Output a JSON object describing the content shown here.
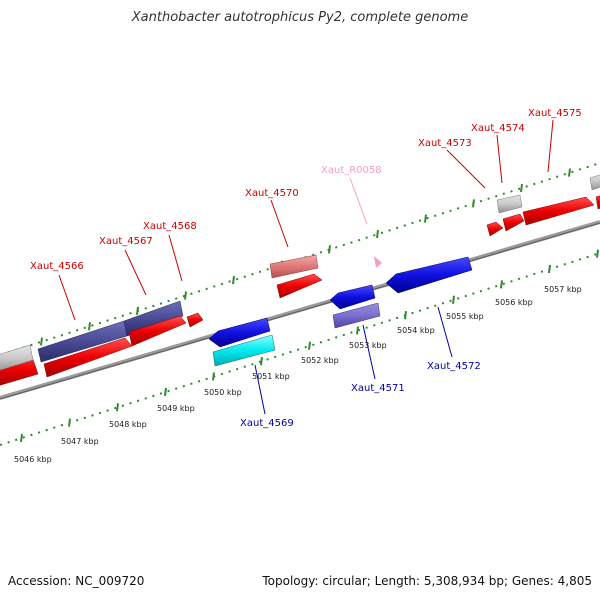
{
  "title": "Xanthobacter autotrophicus Py2, complete genome",
  "footer": {
    "accession": "Accession: NC_009720",
    "info": "Topology: circular; Length: 5,308,934 bp; Genes: 4,805"
  },
  "colors": {
    "backbone": "#777777",
    "tick_green": "#2e8b2e",
    "label_red": "#cc0000",
    "label_blue": "#0000aa",
    "label_pink": "#f0a0c8"
  },
  "scale_labels": [
    "5046 kbp",
    "5047 kbp",
    "5048 kbp",
    "5049 kbp",
    "5050 kbp",
    "5051 kbp",
    "5052 kbp",
    "5053 kbp",
    "5054 kbp",
    "5055 kbp",
    "5056 kbp",
    "5057 kbp"
  ],
  "gene_labels": [
    {
      "id": "xaut-4566",
      "text": "Xaut_4566",
      "color": "#cc0000"
    },
    {
      "id": "xaut-4567",
      "text": "Xaut_4567",
      "color": "#cc0000"
    },
    {
      "id": "xaut-4568",
      "text": "Xaut_4568",
      "color": "#cc0000"
    },
    {
      "id": "xaut-4570",
      "text": "Xaut_4570",
      "color": "#cc0000"
    },
    {
      "id": "xaut-r0058",
      "text": "Xaut_R0058",
      "color": "#f0a0c8"
    },
    {
      "id": "xaut-4573",
      "text": "Xaut_4573",
      "color": "#cc0000"
    },
    {
      "id": "xaut-4574",
      "text": "Xaut_4574",
      "color": "#cc0000"
    },
    {
      "id": "xaut-4575",
      "text": "Xaut_4575",
      "color": "#cc0000"
    },
    {
      "id": "xaut-4569",
      "text": "Xaut_4569",
      "color": "#0000aa"
    },
    {
      "id": "xaut-4571",
      "text": "Xaut_4571",
      "color": "#0000aa"
    },
    {
      "id": "xaut-4572",
      "text": "Xaut_4572",
      "color": "#0000aa"
    }
  ]
}
